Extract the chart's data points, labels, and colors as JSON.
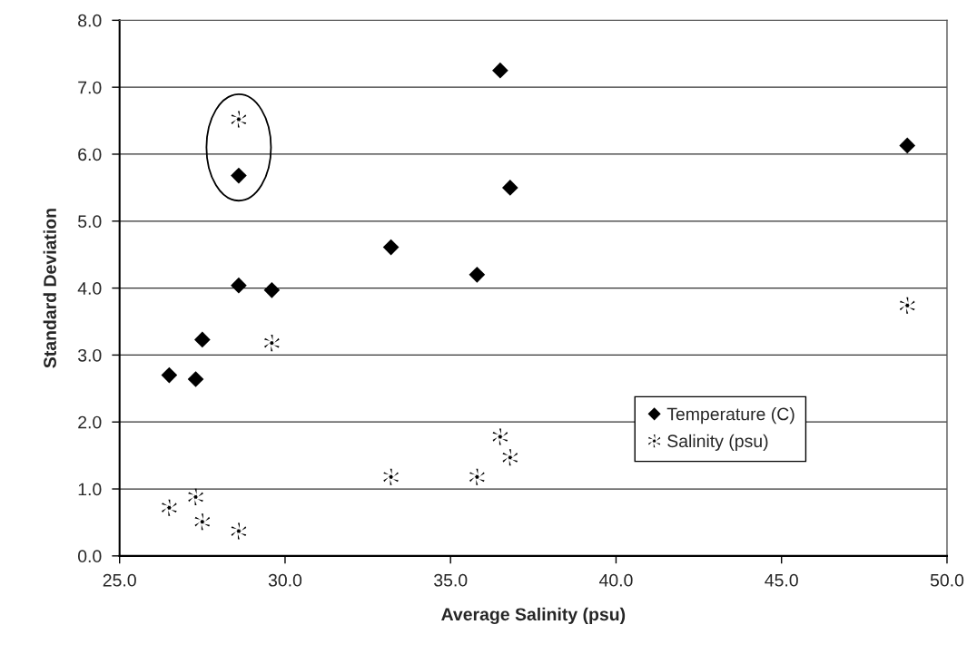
{
  "chart_data": {
    "type": "scatter",
    "xlabel": "Average Salinity (psu)",
    "ylabel": "Standard Deviation",
    "xlim": [
      25,
      50
    ],
    "xticks": [
      {
        "value": 25,
        "label": "25.0"
      },
      {
        "value": 30,
        "label": "30.0"
      },
      {
        "value": 35,
        "label": "35.0"
      },
      {
        "value": 40,
        "label": "40.0"
      },
      {
        "value": 45,
        "label": "45.0"
      },
      {
        "value": 50,
        "label": "50.0"
      }
    ],
    "ylim": [
      0,
      8
    ],
    "yticks": [
      {
        "value": 0,
        "label": "0.0"
      },
      {
        "value": 1,
        "label": "1.0"
      },
      {
        "value": 2,
        "label": "2.0"
      },
      {
        "value": 3,
        "label": "3.0"
      },
      {
        "value": 4,
        "label": "4.0"
      },
      {
        "value": 5,
        "label": "5.0"
      },
      {
        "value": 6,
        "label": "6.0"
      },
      {
        "value": 7,
        "label": "7.0"
      },
      {
        "value": 8,
        "label": "8.0"
      }
    ],
    "grid": "y",
    "legend": "bottom right",
    "x": [
      26.5,
      27.3,
      27.5,
      28.6,
      28.6,
      29.6,
      33.2,
      35.8,
      36.5,
      36.8,
      48.8
    ],
    "series": [
      {
        "name": "Temperature (C)",
        "color": "#000000",
        "marker": "diamond",
        "values": [
          2.7,
          2.64,
          3.23,
          4.04,
          5.68,
          3.97,
          4.61,
          4.2,
          7.25,
          5.5,
          6.13
        ]
      },
      {
        "name": "Salinity (psu)",
        "color": "#000000",
        "marker": "cross",
        "values": [
          0.72,
          0.88,
          0.51,
          0.37,
          6.52,
          3.18,
          1.18,
          1.18,
          1.78,
          1.47,
          3.74
        ]
      }
    ]
  }
}
